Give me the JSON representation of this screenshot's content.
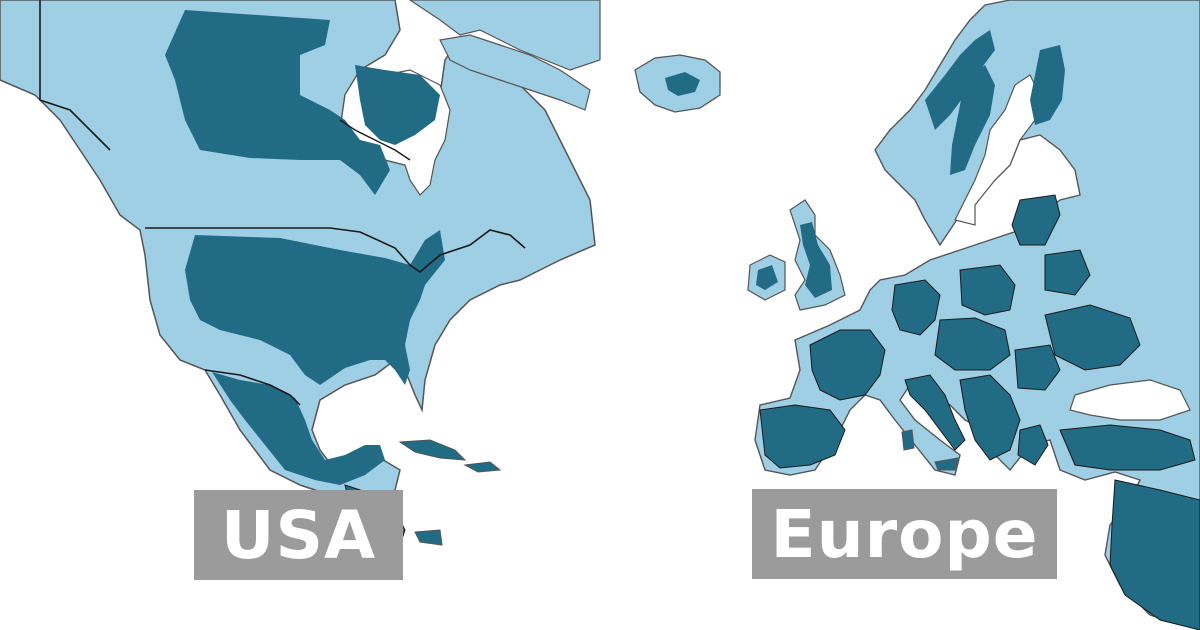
{
  "labels": {
    "left": "USA",
    "right": "Europe"
  },
  "colors": {
    "background": "#ffffff",
    "land_light": "#9fcfe5",
    "land_dark": "#226b85",
    "border": "#1a1a1a",
    "label_bg": "#9b9b9b",
    "label_text": "#ffffff"
  }
}
